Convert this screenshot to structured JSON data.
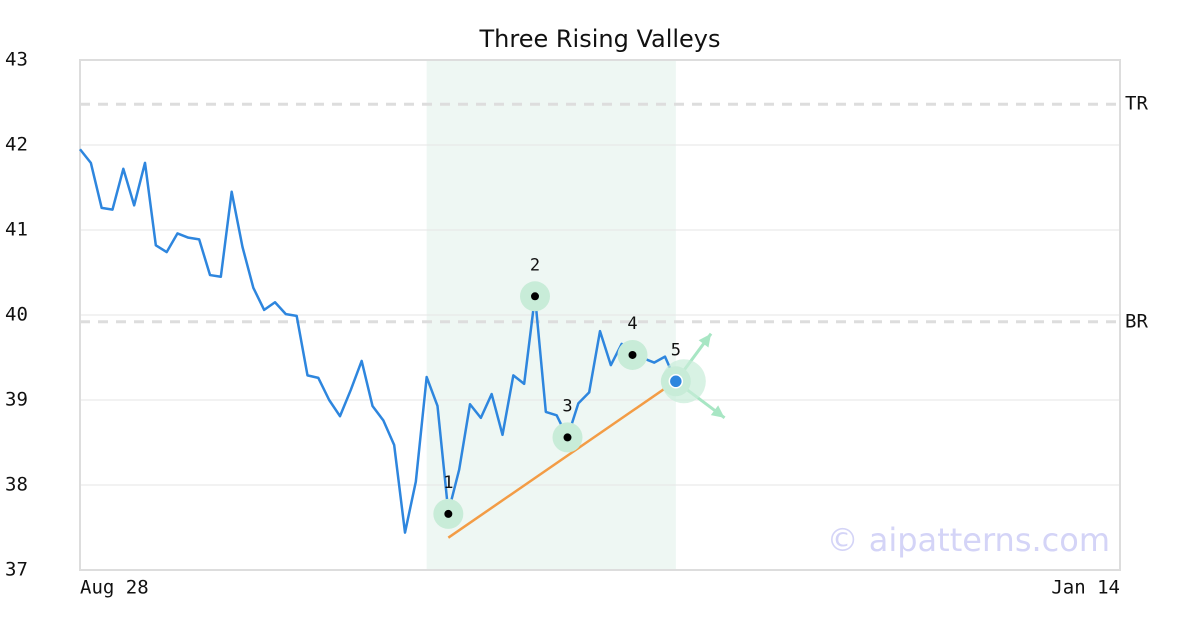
{
  "chart_data": {
    "type": "line",
    "title": "Three Rising Valleys",
    "categories": [
      "Aug 28",
      null,
      null,
      null,
      null,
      null,
      null,
      null,
      null,
      null,
      null,
      null,
      null,
      null,
      null,
      null,
      null,
      null,
      null,
      null,
      null,
      null,
      null,
      null,
      null,
      null,
      null,
      null,
      null,
      null,
      null,
      null,
      null,
      null,
      null,
      null,
      null,
      null,
      null,
      null,
      null,
      null,
      null,
      null,
      null,
      null,
      null,
      null,
      null,
      null,
      null,
      null,
      null,
      null,
      null,
      null,
      null,
      null,
      null,
      null,
      null,
      null,
      null,
      null,
      null,
      null,
      null,
      null,
      null,
      null,
      null,
      null,
      null,
      null,
      null,
      null,
      null,
      null,
      null,
      null,
      null,
      null,
      null,
      null,
      null,
      null,
      null,
      null,
      null,
      null,
      null,
      null,
      null,
      null,
      null,
      null,
      "Jan 14"
    ],
    "series": [
      {
        "color": "#2e86de",
        "values": [
          41.95,
          41.79,
          41.26,
          41.24,
          41.72,
          41.29,
          41.79,
          40.82,
          40.74,
          40.96,
          40.91,
          40.89,
          40.47,
          40.45,
          41.45,
          40.8,
          40.32,
          40.06,
          40.15,
          40.01,
          39.99,
          39.29,
          39.26,
          39.0,
          38.81,
          39.12,
          39.46,
          38.93,
          38.76,
          38.47,
          37.44,
          38.04,
          39.27,
          38.93,
          37.68,
          38.18,
          38.95,
          38.79,
          39.07,
          38.59,
          39.29,
          39.19,
          40.22,
          38.86,
          38.82,
          38.56,
          38.96,
          39.09,
          39.81,
          39.41,
          39.66,
          39.53,
          39.49,
          39.44,
          39.51,
          39.22,
          null,
          null,
          null,
          null,
          null,
          null,
          null,
          null,
          null,
          null,
          null,
          null,
          null,
          null,
          null,
          null,
          null,
          null,
          null,
          null,
          null,
          null,
          null,
          null,
          null,
          null,
          null,
          null,
          null,
          null,
          null,
          null,
          null,
          null,
          null,
          null,
          null,
          null,
          null,
          null,
          null
        ]
      }
    ],
    "ylim": [
      37,
      43
    ],
    "yticks": [
      37,
      38,
      39,
      40,
      41,
      42,
      43
    ],
    "grid": true,
    "highlight": [
      32,
      55
    ],
    "levels": [
      {
        "label": "TR",
        "value": 42.48
      },
      {
        "label": "BR",
        "value": 39.92
      }
    ],
    "pattern_points": [
      {
        "label": "1",
        "x": 34,
        "value": 37.66
      },
      {
        "label": "2",
        "x": 42,
        "value": 40.22
      },
      {
        "label": "3",
        "x": 45,
        "value": 38.56
      },
      {
        "label": "4",
        "x": 51,
        "value": 39.53
      },
      {
        "label": "5",
        "x": 55,
        "value": 39.22
      }
    ],
    "trendline": {
      "x": [
        34,
        54.5
      ],
      "values": [
        37.38,
        39.18
      ],
      "color": "#f39c45"
    },
    "arrows": [
      {
        "x": 58.25,
        "value": 39.78
      },
      {
        "x": 59.5,
        "value": 38.79
      }
    ],
    "watermark": "© aipatterns.com"
  }
}
